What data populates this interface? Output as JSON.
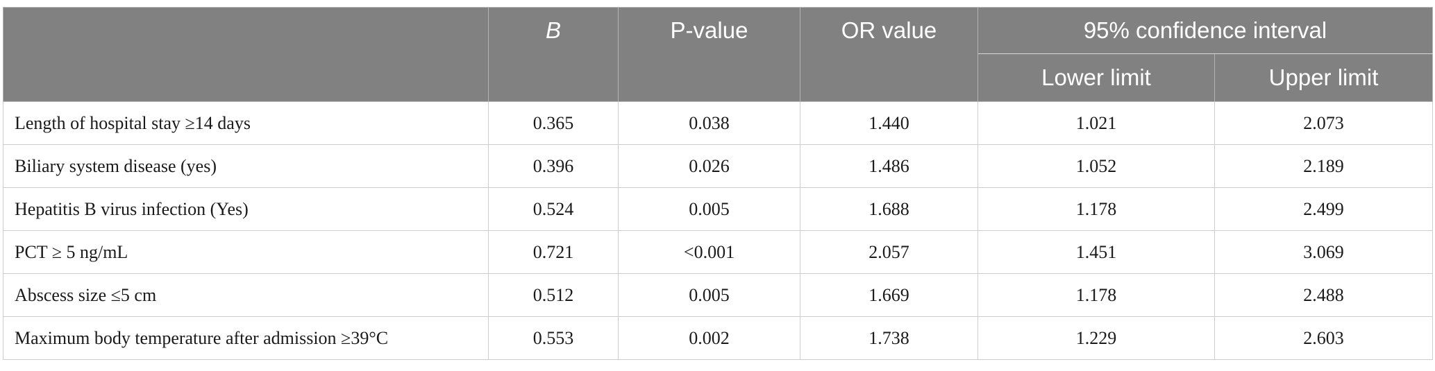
{
  "table": {
    "headers": {
      "variable": "",
      "b": "B",
      "p_value": "P-value",
      "or_value": "OR value",
      "ci_group": "95% confidence interval",
      "lower": "Lower limit",
      "upper": "Upper limit"
    },
    "rows": [
      {
        "label": "Length of hospital stay ≥14 days",
        "b": "0.365",
        "p": "0.038",
        "or": "1.440",
        "lower": "1.021",
        "upper": "2.073"
      },
      {
        "label": "Biliary system disease (yes)",
        "b": "0.396",
        "p": "0.026",
        "or": "1.486",
        "lower": "1.052",
        "upper": "2.189"
      },
      {
        "label": "Hepatitis B virus infection (Yes)",
        "b": "0.524",
        "p": "0.005",
        "or": "1.688",
        "lower": "1.178",
        "upper": "2.499"
      },
      {
        "label": "PCT ≥ 5 ng/mL",
        "b": "0.721",
        "p": "<0.001",
        "or": "2.057",
        "lower": "1.451",
        "upper": "3.069"
      },
      {
        "label": "Abscess size ≤5 cm",
        "b": "0.512",
        "p": "0.005",
        "or": "1.669",
        "lower": "1.178",
        "upper": "2.488"
      },
      {
        "label": "Maximum body temperature after admission ≥39°C",
        "b": "0.553",
        "p": "0.002",
        "or": "1.738",
        "lower": "1.229",
        "upper": "2.603"
      }
    ]
  },
  "colors": {
    "header_background": "#808180",
    "header_text": "#ffffff",
    "grid_line": "#cdcdcd"
  }
}
